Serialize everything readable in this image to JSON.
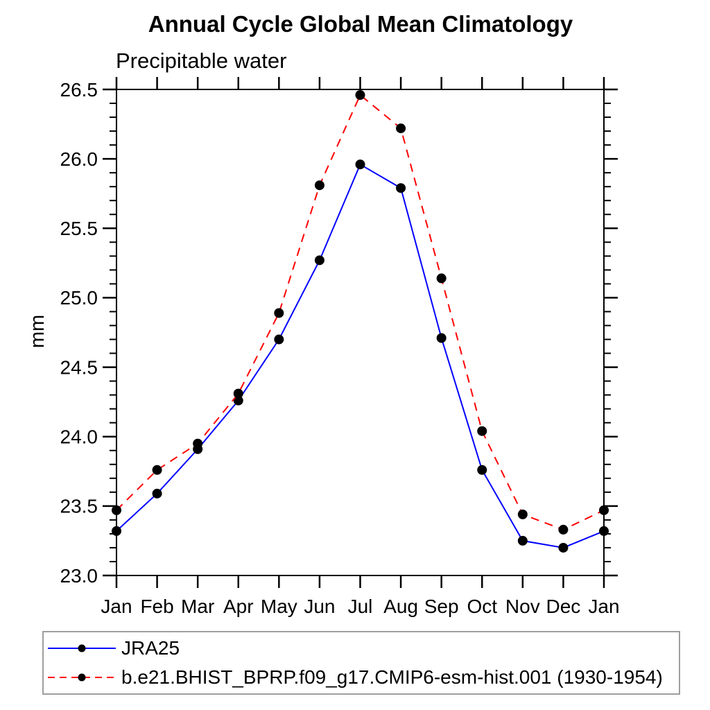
{
  "title": "Annual Cycle Global Mean Climatology",
  "subtitle": "Precipitable water",
  "chart_data": {
    "type": "line",
    "title": "Annual Cycle Global Mean Climatology",
    "subtitle": "Precipitable water",
    "xlabel": "",
    "ylabel": "mm",
    "x_categories": [
      "Jan",
      "Feb",
      "Mar",
      "Apr",
      "May",
      "Jun",
      "Jul",
      "Aug",
      "Sep",
      "Oct",
      "Nov",
      "Dec",
      "Jan"
    ],
    "ylim": [
      23.0,
      26.5
    ],
    "y_major_step": 0.5,
    "y_minor_step": 0.1,
    "y_tick_labels": [
      "23.0",
      "23.5",
      "24.0",
      "24.5",
      "25.0",
      "25.5",
      "26.0",
      "26.5"
    ],
    "grid": false,
    "legend_position": "bottom-left-box",
    "axis_color": "#000000",
    "marker": "filled-circle",
    "marker_color": "#000000",
    "series": [
      {
        "name": "JRA25",
        "color": "#0000ff",
        "line_style": "solid",
        "values": [
          23.32,
          23.59,
          23.91,
          24.26,
          24.7,
          25.27,
          25.96,
          25.79,
          24.71,
          23.76,
          23.25,
          23.2,
          23.32
        ]
      },
      {
        "name": "b.e21.BHIST_BPRP.f09_g17.CMIP6-esm-hist.001 (1930-1954)",
        "color": "#ff0000",
        "line_style": "dashed",
        "values": [
          23.47,
          23.76,
          23.95,
          24.31,
          24.89,
          25.81,
          26.46,
          26.22,
          25.14,
          24.04,
          23.44,
          23.33,
          23.47
        ]
      }
    ]
  }
}
